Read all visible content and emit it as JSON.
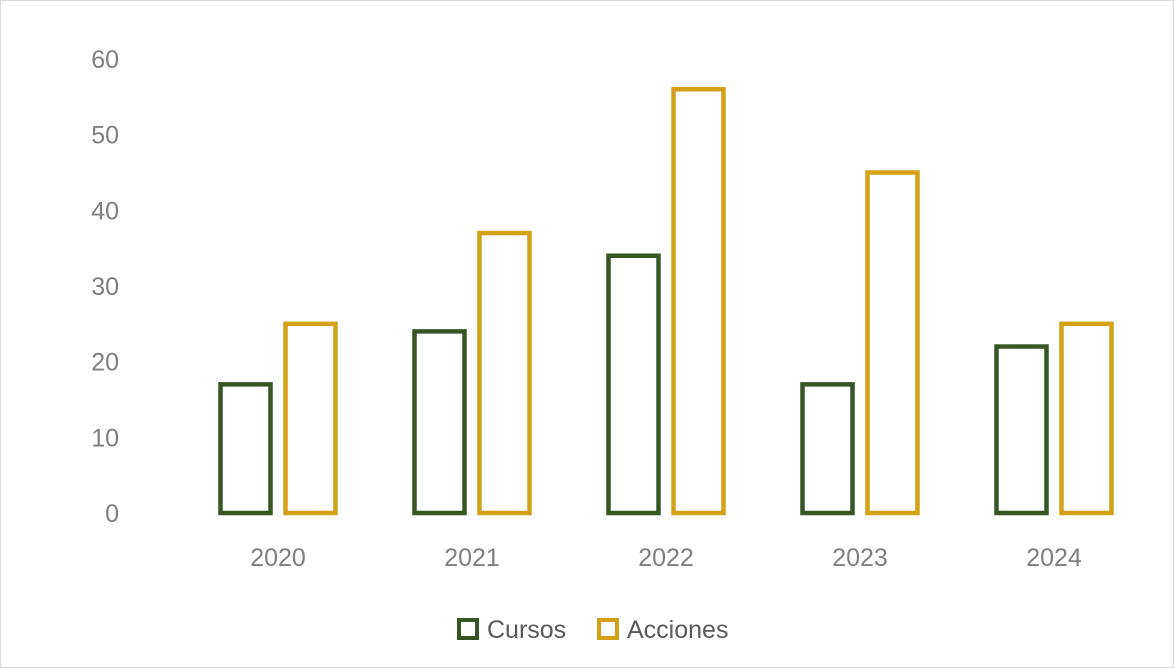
{
  "chart_data": {
    "type": "bar",
    "title": "",
    "xlabel": "",
    "ylabel": "",
    "categories": [
      "2020",
      "2021",
      "2022",
      "2023",
      "2024"
    ],
    "series": [
      {
        "name": "Cursos",
        "values": [
          17,
          24,
          34,
          17,
          22
        ],
        "color": "#375623"
      },
      {
        "name": "Acciones",
        "values": [
          25,
          37,
          56,
          45,
          25
        ],
        "color": "#d4a017"
      }
    ],
    "ylim": [
      0,
      60
    ],
    "yticks": [
      0,
      10,
      20,
      30,
      40,
      50,
      60
    ],
    "grid": false,
    "bar_style": "outline",
    "legend_position": "bottom"
  }
}
